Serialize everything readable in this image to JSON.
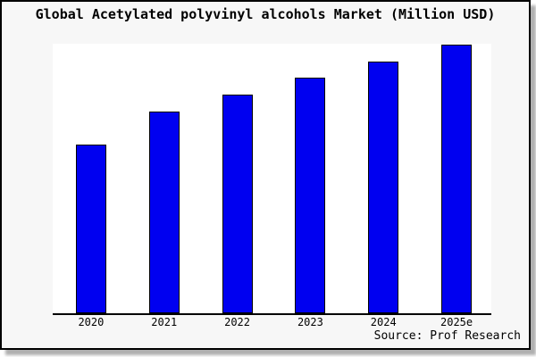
{
  "page": {
    "background": "#ffffff"
  },
  "card": {
    "background": "#f7f7f7",
    "border_color": "#000000",
    "shadow_color": "#b0b0b0"
  },
  "title": "Global Acetylated polyvinyl alcohols Market (Million USD)",
  "source": "Source: Prof Research",
  "chart_data": {
    "type": "bar",
    "title": "Global Acetylated polyvinyl alcohols Market (Million USD)",
    "categories": [
      "2020",
      "2021",
      "2022",
      "2023",
      "2024",
      "2025e"
    ],
    "values": [
      62.7,
      74.8,
      81.1,
      87.4,
      93.5,
      99.8
    ],
    "value_note": "y-axis has no ticks or labels; values estimated from bar heights, normalized so plot-area top = 100",
    "ylim": [
      0,
      100
    ],
    "xlabel": "",
    "ylabel": "",
    "grid": false,
    "legend": false,
    "bar_color": "#0000f0",
    "bar_border_color": "#000000",
    "axis_color": "#000000",
    "plot_background": "#ffffff",
    "tick_label_color": "#000000",
    "source": "Source: Prof Research"
  }
}
